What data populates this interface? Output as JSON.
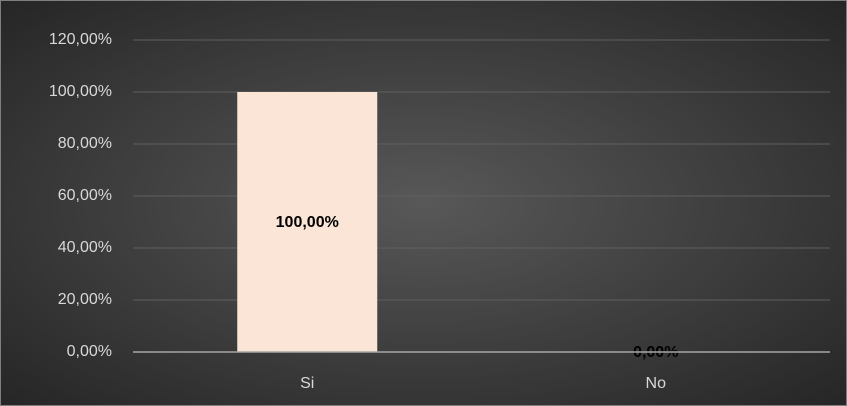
{
  "chart_data": {
    "type": "bar",
    "categories": [
      "Si",
      "No"
    ],
    "values": [
      100,
      0
    ],
    "value_labels": [
      "100,00%",
      "0,00%"
    ],
    "color": "#fbe5d6",
    "ylim": [
      0,
      120
    ],
    "yticks": [
      {
        "value": 0,
        "label": "0,00%"
      },
      {
        "value": 20,
        "label": "20,00%"
      },
      {
        "value": 40,
        "label": "40,00%"
      },
      {
        "value": 60,
        "label": "60,00%"
      },
      {
        "value": 80,
        "label": "80,00%"
      },
      {
        "value": 100,
        "label": "100,00%"
      },
      {
        "value": 120,
        "label": "120,00%"
      }
    ],
    "grid": true
  }
}
